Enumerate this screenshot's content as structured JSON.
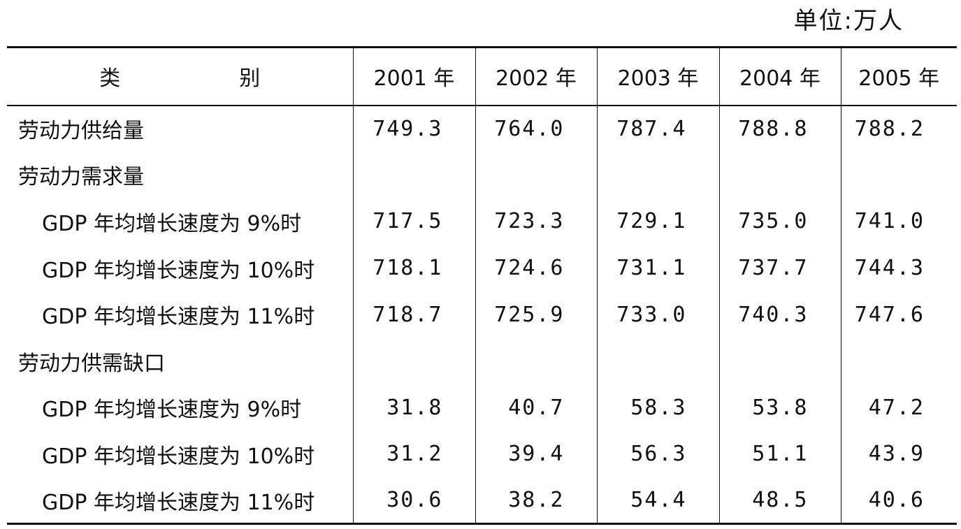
{
  "unit_label": "单位:万人",
  "table": {
    "headers": [
      "类　别",
      "2001 年",
      "2002 年",
      "2003 年",
      "2004 年",
      "2005 年"
    ],
    "rows": [
      {
        "label": "劳动力供给量",
        "indent": false,
        "values": [
          "749.3",
          "764.0",
          "787.4",
          "788.8",
          "788.2"
        ]
      },
      {
        "label": "劳动力需求量",
        "indent": false,
        "values": [
          "",
          "",
          "",
          "",
          ""
        ]
      },
      {
        "label": "GDP 年均增长速度为 9%时",
        "indent": true,
        "values": [
          "717.5",
          "723.3",
          "729.1",
          "735.0",
          "741.0"
        ]
      },
      {
        "label": "GDP 年均增长速度为 10%时",
        "indent": true,
        "values": [
          "718.1",
          "724.6",
          "731.1",
          "737.7",
          "744.3"
        ]
      },
      {
        "label": "GDP 年均增长速度为 11%时",
        "indent": true,
        "values": [
          "718.7",
          "725.9",
          "733.0",
          "740.3",
          "747.6"
        ]
      },
      {
        "label": "劳动力供需缺口",
        "indent": false,
        "values": [
          "",
          "",
          "",
          "",
          ""
        ]
      },
      {
        "label": "GDP 年均增长速度为 9%时",
        "indent": true,
        "values": [
          "31.8",
          "40.7",
          "58.3",
          "53.8",
          "47.2"
        ]
      },
      {
        "label": "GDP 年均增长速度为 10%时",
        "indent": true,
        "values": [
          "31.2",
          "39.4",
          "56.3",
          "51.1",
          "43.9"
        ]
      },
      {
        "label": "GDP 年均增长速度为 11%时",
        "indent": true,
        "values": [
          "30.6",
          "38.2",
          "54.4",
          "48.5",
          "40.6"
        ]
      }
    ]
  }
}
